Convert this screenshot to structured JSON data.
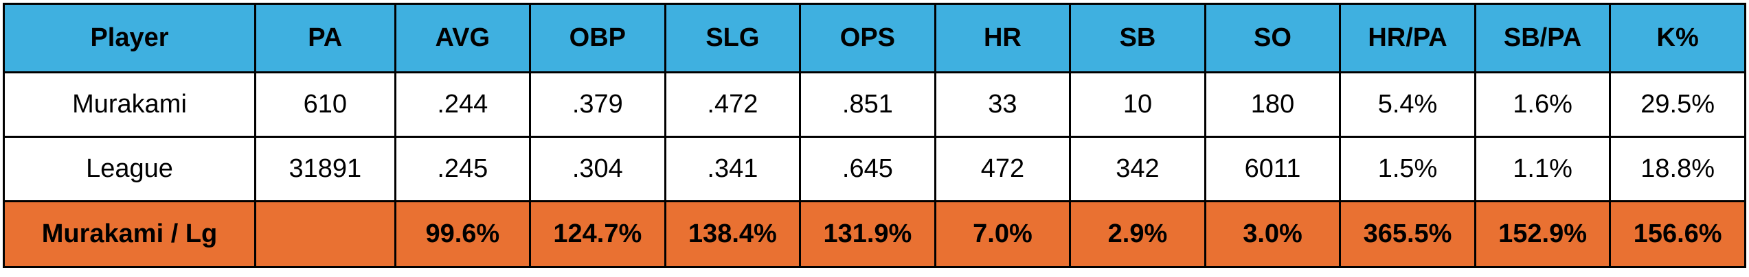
{
  "colors": {
    "header_bg": "#3fb0e0",
    "row_bg": "#ffffff",
    "ratio_row_bg": "#e97132",
    "border": "#000000",
    "text": "#000000"
  },
  "table": {
    "columns": [
      "Player",
      "PA",
      "AVG",
      "OBP",
      "SLG",
      "OPS",
      "HR",
      "SB",
      "SO",
      "HR/PA",
      "SB/PA",
      "K%"
    ],
    "rows": [
      {
        "type": "data",
        "cells": [
          "Murakami",
          "610",
          ".244",
          ".379",
          ".472",
          ".851",
          "33",
          "10",
          "180",
          "5.4%",
          "1.6%",
          "29.5%"
        ]
      },
      {
        "type": "data",
        "cells": [
          "League",
          "31891",
          ".245",
          ".304",
          ".341",
          ".645",
          "472",
          "342",
          "6011",
          "1.5%",
          "1.1%",
          "18.8%"
        ]
      },
      {
        "type": "ratio",
        "cells": [
          "Murakami / Lg",
          "",
          "99.6%",
          "124.7%",
          "138.4%",
          "131.9%",
          "7.0%",
          "2.9%",
          "3.0%",
          "365.5%",
          "152.9%",
          "156.6%"
        ]
      }
    ]
  }
}
